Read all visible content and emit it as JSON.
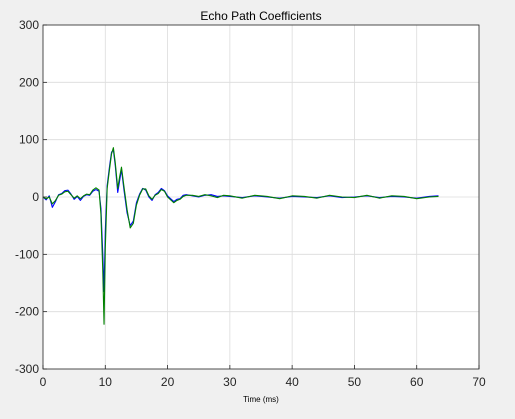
{
  "chart_data": {
    "type": "line",
    "title": "Echo Path Coefficients",
    "xlabel": "Time (ms)",
    "ylabel": "",
    "xlim": [
      0,
      70
    ],
    "ylim": [
      -300,
      300
    ],
    "xticks": [
      0,
      10,
      20,
      30,
      40,
      50,
      60,
      70
    ],
    "yticks": [
      -300,
      -200,
      -100,
      0,
      100,
      200,
      300
    ],
    "grid": true,
    "legend": "none",
    "series": [
      {
        "color": "#0000ff",
        "x": [
          0,
          0.5,
          1,
          1.5,
          2,
          2.5,
          3,
          3.5,
          4,
          4.5,
          5,
          5.5,
          6,
          6.5,
          7,
          7.5,
          8,
          8.5,
          9,
          9.3,
          9.6,
          9.8,
          10,
          10.3,
          10.7,
          11,
          11.3,
          11.6,
          12,
          12.3,
          12.6,
          13,
          13.5,
          14,
          14.5,
          15,
          15.5,
          16,
          16.5,
          17,
          17.5,
          18,
          18.5,
          19,
          19.5,
          20,
          20.5,
          21,
          21.5,
          22,
          22.5,
          23,
          24,
          25,
          26,
          27,
          28,
          29,
          30,
          32,
          34,
          36,
          38,
          40,
          42,
          44,
          46,
          48,
          50,
          52,
          54,
          56,
          58,
          60,
          62,
          63.5
        ],
        "values": [
          0,
          -5,
          2,
          -18,
          -8,
          4,
          6,
          11,
          12,
          5,
          -4,
          1,
          -6,
          1,
          4,
          3,
          10,
          13,
          10,
          -20,
          -100,
          -165,
          -60,
          20,
          55,
          78,
          82,
          55,
          8,
          28,
          48,
          12,
          -28,
          -50,
          -42,
          -10,
          5,
          15,
          12,
          0,
          -6,
          4,
          8,
          15,
          11,
          2,
          -3,
          -8,
          -4,
          -3,
          3,
          4,
          2,
          0,
          3,
          4,
          1,
          2,
          1,
          -1,
          2,
          0,
          -2,
          1,
          0,
          -1,
          2,
          -1,
          0,
          2,
          -1,
          1,
          0,
          -2,
          1,
          2
        ]
      },
      {
        "color": "#008000",
        "x": [
          0,
          0.5,
          1,
          1.5,
          2,
          2.5,
          3,
          3.5,
          4,
          4.5,
          5,
          5.5,
          6,
          6.5,
          7,
          7.5,
          8,
          8.5,
          9,
          9.3,
          9.6,
          9.8,
          10,
          10.3,
          10.7,
          11,
          11.3,
          11.6,
          12,
          12.3,
          12.6,
          13,
          13.5,
          14,
          14.5,
          15,
          15.5,
          16,
          16.5,
          17,
          17.5,
          18,
          18.5,
          19,
          19.5,
          20,
          20.5,
          21,
          21.5,
          22,
          22.5,
          23,
          24,
          25,
          26,
          27,
          28,
          29,
          30,
          32,
          34,
          36,
          38,
          40,
          42,
          44,
          46,
          48,
          50,
          52,
          54,
          56,
          58,
          60,
          62,
          63.5
        ],
        "values": [
          0,
          -3,
          0,
          -12,
          -6,
          3,
          5,
          9,
          10,
          4,
          -2,
          2,
          -3,
          2,
          5,
          4,
          12,
          16,
          12,
          -30,
          -130,
          -222,
          -90,
          15,
          50,
          75,
          86,
          60,
          15,
          35,
          52,
          18,
          -22,
          -54,
          -46,
          -14,
          3,
          14,
          14,
          2,
          -4,
          3,
          6,
          13,
          10,
          0,
          -5,
          -10,
          -6,
          -4,
          1,
          3,
          3,
          1,
          4,
          2,
          -1,
          3,
          2,
          -2,
          3,
          1,
          -3,
          2,
          1,
          -2,
          3,
          0,
          -1,
          3,
          -2,
          2,
          1,
          -3,
          0,
          1
        ]
      }
    ]
  }
}
